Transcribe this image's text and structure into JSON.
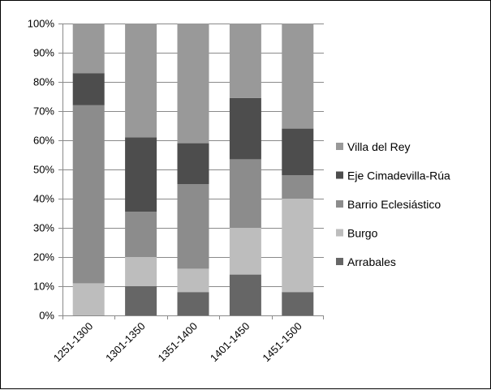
{
  "chart_data": {
    "type": "bar",
    "stacked": true,
    "percent": true,
    "title": "",
    "xlabel": "",
    "ylabel": "",
    "ylim": [
      0,
      100
    ],
    "y_ticks": [
      "0%",
      "10%",
      "20%",
      "30%",
      "40%",
      "50%",
      "60%",
      "70%",
      "80%",
      "90%",
      "100%"
    ],
    "grid": true,
    "legend_position": "right",
    "categories": [
      "1251-1300",
      "1301-1350",
      "1351-1400",
      "1401-1450",
      "1451-1500"
    ],
    "series": [
      {
        "name": "Arrabales",
        "color": "#666666",
        "values": [
          0,
          10,
          8,
          14,
          8
        ]
      },
      {
        "name": "Burgo",
        "color": "#bdbdbd",
        "values": [
          11,
          10,
          8,
          16,
          32
        ]
      },
      {
        "name": "Barrio Eclesiástico",
        "color": "#8c8c8c",
        "values": [
          61,
          15.5,
          29,
          23.5,
          8
        ]
      },
      {
        "name": "Eje Cimadevilla-Rúa",
        "color": "#4d4d4d",
        "values": [
          11,
          25.5,
          14,
          21,
          16
        ]
      },
      {
        "name": "Villa del Rey",
        "color": "#999999",
        "values": [
          17,
          39,
          41,
          25.5,
          36
        ]
      }
    ]
  }
}
